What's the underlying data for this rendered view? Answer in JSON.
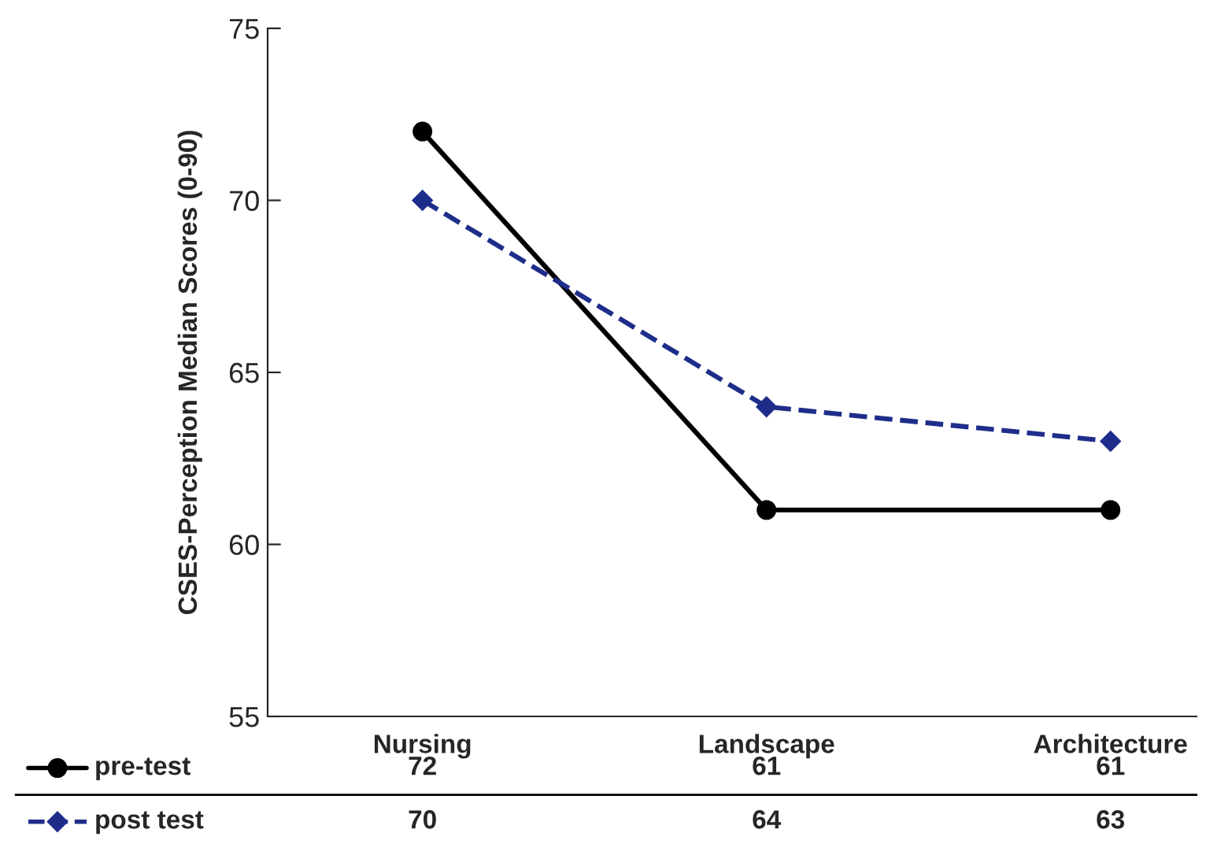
{
  "chart_data": {
    "type": "line",
    "ylabel": "CSES-Perception Median Scores (0-90)",
    "categories": [
      "Nursing",
      "Landscape",
      "Architecture"
    ],
    "series": [
      {
        "name": "pre-test",
        "color": "#000000",
        "values": [
          72,
          61,
          61
        ],
        "marker": "circle",
        "line_style": "solid"
      },
      {
        "name": "post test",
        "color": "#1f2d8a",
        "values": [
          70,
          64,
          63
        ],
        "marker": "diamond",
        "line_style": "dashed"
      }
    ],
    "ylim": [
      55,
      75
    ],
    "yticks": [
      55,
      60,
      65,
      70,
      75
    ],
    "grid": false,
    "legend": "bottom",
    "data_labels": true
  }
}
